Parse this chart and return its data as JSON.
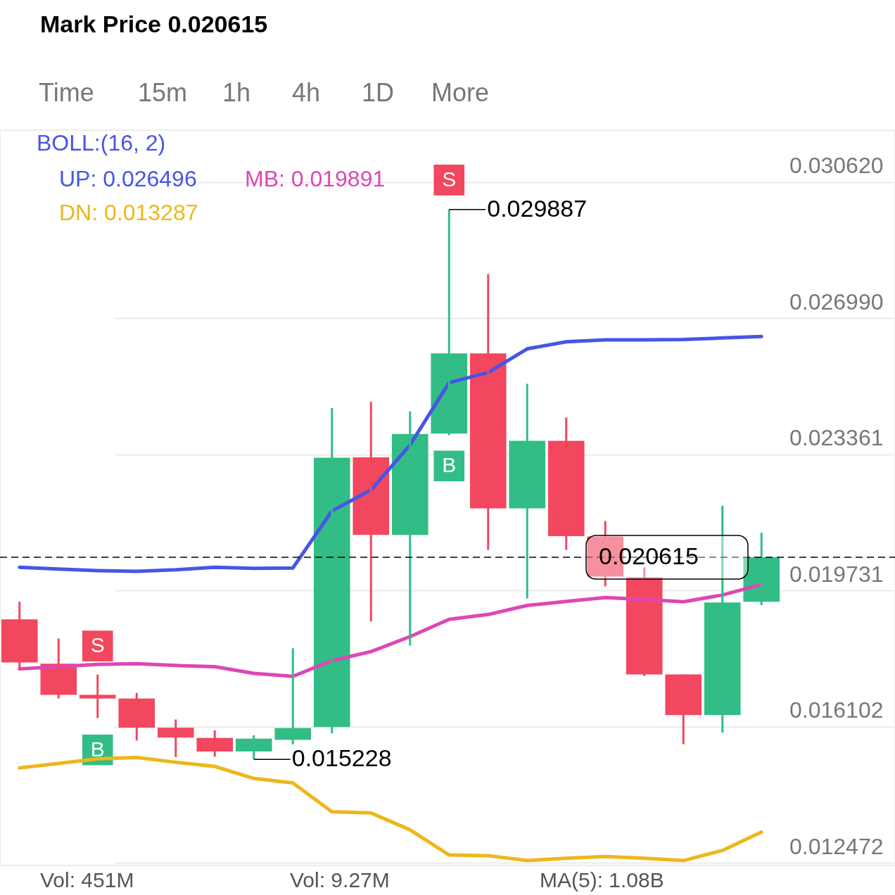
{
  "chart_data": {
    "type": "candlestick",
    "title": "Mark Price 0.020615",
    "subtitle": "Time 15m 1h 4h 1D More",
    "legend_title": "BOLL:(16, 2)",
    "categories": [
      null,
      null,
      null,
      null,
      null,
      null,
      null,
      null,
      null,
      null,
      null,
      null,
      null,
      null,
      null,
      null,
      null,
      null,
      null,
      null
    ],
    "series": [
      {
        "ohlc": [
          [
            0.01896,
            0.01943,
            0.01761,
            0.01781
          ],
          [
            0.01778,
            0.01845,
            0.01685,
            0.01695
          ],
          [
            0.01695,
            0.01749,
            0.01633,
            0.01685
          ],
          [
            0.01685,
            0.017,
            0.01573,
            0.01607
          ],
          [
            0.01607,
            0.01629,
            0.01529,
            0.01581
          ],
          [
            0.0158,
            0.016,
            0.0153,
            0.01544
          ],
          [
            0.01544,
            0.01587,
            0.015228,
            0.01578
          ],
          [
            0.01575,
            0.01819,
            0.01563,
            0.01606
          ],
          [
            0.01609,
            0.02459,
            0.01592,
            0.02327
          ],
          [
            0.02328,
            0.02476,
            0.01891,
            0.02121
          ],
          [
            0.02121,
            0.0245,
            0.01826,
            0.0239
          ],
          [
            0.02391,
            0.029887,
            0.02387,
            0.02605
          ],
          [
            0.02605,
            0.02816,
            0.02081,
            0.02192
          ],
          [
            0.02192,
            0.02524,
            0.01952,
            0.02372
          ],
          [
            0.02372,
            0.02434,
            0.02081,
            0.02118
          ],
          [
            0.02117,
            0.02158,
            0.01984,
            0.0201
          ],
          [
            0.02008,
            0.02035,
            0.01745,
            0.01749
          ],
          [
            0.01749,
            0.01749,
            0.01563,
            0.01641
          ],
          [
            0.01641,
            0.02199,
            0.01594,
            0.01941
          ],
          [
            0.01943,
            0.02127,
            0.01934,
            0.020615
          ]
        ],
        "colors": [
          "#f2475e",
          "#f2475e",
          "#f2475e",
          "#f2475e",
          "#f2475e",
          "#f2475e",
          "#32bd86",
          "#32bd86",
          "#32bd86",
          "#f2475e",
          "#32bd86",
          "#32bd86",
          "#f2475e",
          "#32bd86",
          "#f2475e",
          "#f2475e",
          "#f2475e",
          "#f2475e",
          "#32bd86",
          "#32bd86"
        ],
        "value_labels": [
          null,
          null,
          null,
          null,
          null,
          null,
          "0.015228",
          null,
          null,
          null,
          null,
          "0.029887",
          null,
          null,
          null,
          null,
          null,
          null,
          null,
          null
        ]
      },
      {
        "type": "line",
        "name": "UP: 0.026496",
        "color": "#4755e6",
        "values": [
          0.02035,
          0.0203,
          0.02026,
          0.02024,
          0.02028,
          0.02035,
          0.02032,
          0.02033,
          0.02185,
          0.02241,
          0.02361,
          0.02527,
          0.02554,
          0.02617,
          0.02636,
          0.02641,
          0.02641,
          0.02642,
          0.02646,
          0.0265
        ]
      },
      {
        "type": "line",
        "name": "MB: 0.019891",
        "color": "#de47b4",
        "values": [
          0.01764,
          0.0177,
          0.01776,
          0.01778,
          0.01773,
          0.0177,
          0.01752,
          0.01744,
          0.01786,
          0.0181,
          0.0185,
          0.01896,
          0.01909,
          0.01933,
          0.01944,
          0.01954,
          0.01949,
          0.01943,
          0.01961,
          0.01989
        ]
      },
      {
        "type": "line",
        "name": "DN: 0.013287",
        "color": "#ecb71a",
        "values": [
          0.015,
          0.01512,
          0.01524,
          0.01528,
          0.01515,
          0.01504,
          0.01472,
          0.0146,
          0.01383,
          0.0138,
          0.01335,
          0.01268,
          0.01266,
          0.01253,
          0.01259,
          0.01264,
          0.01259,
          0.01253,
          0.0128,
          0.01329
        ]
      },
      {
        "type": "scatter",
        "color": "#f2475e",
        "marker": "square",
        "values": [
          null,
          null,
          0.01825,
          null,
          null,
          null,
          null,
          null,
          null,
          null,
          null,
          0.03067,
          null,
          null,
          null,
          null,
          null,
          null,
          null,
          null
        ],
        "value_labels": [
          null,
          null,
          "S",
          null,
          null,
          null,
          null,
          null,
          null,
          null,
          null,
          "S",
          null,
          null,
          null,
          null,
          null,
          null,
          null,
          null
        ]
      },
      {
        "type": "scatter",
        "color": "#32bd86",
        "marker": "square",
        "values": [
          null,
          null,
          0.01548,
          null,
          null,
          null,
          null,
          null,
          null,
          null,
          null,
          0.02305,
          null,
          null,
          null,
          null,
          null,
          null,
          null,
          null
        ],
        "value_labels": [
          null,
          null,
          "B",
          null,
          null,
          null,
          null,
          null,
          null,
          null,
          null,
          "B",
          null,
          null,
          null,
          null,
          null,
          null,
          null,
          null
        ]
      }
    ],
    "ylim": [
      0.0124,
      0.032
    ],
    "yticks": [
      {
        "value": 0.03062,
        "label": "0.030620"
      },
      {
        "value": 0.02699,
        "label": "0.026990"
      },
      0.023361,
      0.019731,
      0.016102,
      0.012472
    ],
    "ref_lines": [
      {
        "axis": "y",
        "value": 0.020615,
        "label": "0.020615",
        "color": "#000000",
        "line_style": "dashed"
      }
    ],
    "annotations": [
      "Vol: 451M",
      "Vol: 9.27M",
      "MA(5): 1.08B"
    ],
    "grid": "y",
    "legend": "top left",
    "tick_labels": "y"
  }
}
